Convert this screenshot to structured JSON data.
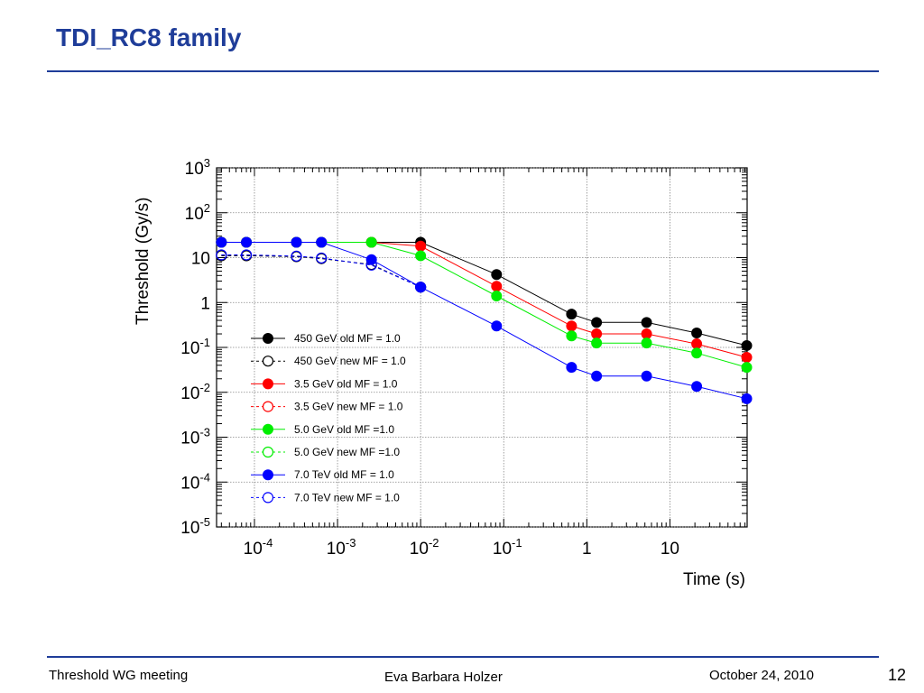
{
  "slide": {
    "title": "TDI_RC8 family",
    "footer_left": "Threshold WG meeting",
    "footer_center": "Eva Barbara Holzer",
    "footer_date": "October 24, 2010",
    "page_number": "12"
  },
  "colors": {
    "title": "#1f3d99",
    "rule": "#1f3d99"
  },
  "chart_data": {
    "type": "line",
    "title": "",
    "xlabel": "Time (s)",
    "ylabel": "Threshold (Gy/s)",
    "xscale": "log",
    "yscale": "log",
    "xlim": [
      3.5e-05,
      85
    ],
    "ylim": [
      1e-05,
      1000
    ],
    "grid": true,
    "legend_position": "center-left",
    "x_tick_labels": [
      {
        "value": 0.0001,
        "base": "10",
        "exp": "-4"
      },
      {
        "value": 0.001,
        "base": "10",
        "exp": "-3"
      },
      {
        "value": 0.01,
        "base": "10",
        "exp": "-2"
      },
      {
        "value": 0.1,
        "base": "10",
        "exp": "-1"
      },
      {
        "value": 1,
        "base": "1",
        "exp": ""
      },
      {
        "value": 10,
        "base": "10",
        "exp": ""
      }
    ],
    "y_tick_labels": [
      {
        "value": 1000,
        "base": "10",
        "exp": "3"
      },
      {
        "value": 100,
        "base": "10",
        "exp": "2"
      },
      {
        "value": 10,
        "base": "10",
        "exp": ""
      },
      {
        "value": 1,
        "base": "1",
        "exp": ""
      },
      {
        "value": 0.1,
        "base": "10",
        "exp": "-1"
      },
      {
        "value": 0.01,
        "base": "10",
        "exp": "-2"
      },
      {
        "value": 0.001,
        "base": "10",
        "exp": "-3"
      },
      {
        "value": 0.0001,
        "base": "10",
        "exp": "-4"
      },
      {
        "value": 1e-05,
        "base": "10",
        "exp": "-5"
      }
    ],
    "series": [
      {
        "name": "450 GeV old MF = 1.0",
        "color": "#000000",
        "marker": "filled",
        "dashed": false,
        "x": [
          4e-05,
          8e-05,
          0.00032,
          0.00064,
          0.00256,
          0.01,
          0.082,
          0.655,
          1.31,
          5.24,
          21,
          84
        ],
        "y": [
          22,
          22,
          22,
          22,
          22,
          22,
          4.2,
          0.55,
          0.36,
          0.36,
          0.21,
          0.11
        ]
      },
      {
        "name": "450 GeV new MF = 1.0",
        "color": "#000000",
        "marker": "open",
        "dashed": true,
        "x": [
          4e-05,
          8e-05,
          0.00032,
          0.00064,
          0.00256,
          0.01
        ],
        "y": [
          11,
          11,
          10.5,
          9.5,
          7,
          2.2
        ]
      },
      {
        "name": "3.5 GeV old MF = 1.0",
        "color": "#ff0000",
        "marker": "filled",
        "dashed": false,
        "x": [
          4e-05,
          8e-05,
          0.00032,
          0.00064,
          0.00256,
          0.01,
          0.082,
          0.655,
          1.31,
          5.24,
          21,
          84
        ],
        "y": [
          22,
          22,
          22,
          22,
          22,
          18,
          2.3,
          0.3,
          0.2,
          0.2,
          0.12,
          0.06
        ]
      },
      {
        "name": "3.5 GeV new MF = 1.0",
        "color": "#ff0000",
        "marker": "open",
        "dashed": true,
        "x": [],
        "y": []
      },
      {
        "name": "5.0 GeV old MF =1.0",
        "color": "#00ee00",
        "marker": "filled",
        "dashed": false,
        "x": [
          4e-05,
          8e-05,
          0.00032,
          0.00064,
          0.00256,
          0.01,
          0.082,
          0.655,
          1.31,
          5.24,
          21,
          84
        ],
        "y": [
          22,
          22,
          22,
          22,
          22,
          11,
          1.4,
          0.18,
          0.125,
          0.125,
          0.075,
          0.036
        ]
      },
      {
        "name": "5.0 GeV new MF =1.0",
        "color": "#00ee00",
        "marker": "open",
        "dashed": true,
        "x": [],
        "y": []
      },
      {
        "name": "7.0 TeV old MF = 1.0",
        "color": "#0000ff",
        "marker": "filled",
        "dashed": false,
        "x": [
          4e-05,
          8e-05,
          0.00032,
          0.00064,
          0.00256,
          0.01,
          0.082,
          0.655,
          1.31,
          5.24,
          21,
          84
        ],
        "y": [
          22,
          22,
          22,
          22,
          9,
          2.2,
          0.3,
          0.036,
          0.023,
          0.023,
          0.0135,
          0.0072
        ]
      },
      {
        "name": "7.0 TeV new MF = 1.0",
        "color": "#0000ff",
        "marker": "open",
        "dashed": true,
        "x": [
          4e-05,
          8e-05,
          0.00032,
          0.00064,
          0.00256,
          0.01
        ],
        "y": [
          11.5,
          11.5,
          10.8,
          9.8,
          6.8,
          2.2
        ]
      }
    ]
  }
}
